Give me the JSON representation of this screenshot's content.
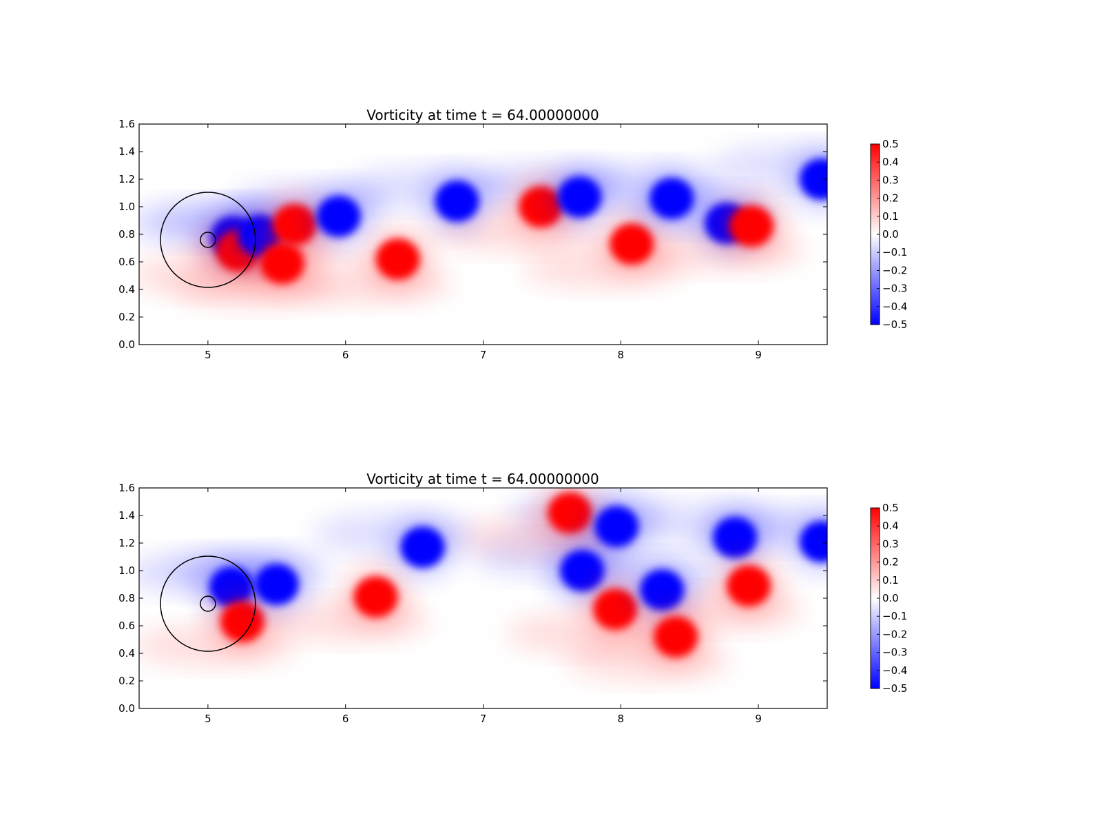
{
  "chart_data": [
    {
      "type": "heatmap",
      "title": "Vorticity at time t =    64.00000000",
      "xlabel": "",
      "ylabel": "",
      "xlim": [
        4.5,
        9.5
      ],
      "ylim": [
        0.0,
        1.6
      ],
      "xticks": [
        5,
        6,
        7,
        8,
        9
      ],
      "yticks": [
        0.0,
        0.2,
        0.4,
        0.6,
        0.8,
        1.0,
        1.2,
        1.4,
        1.6
      ],
      "xtick_labels": [
        "5",
        "6",
        "7",
        "8",
        "9"
      ],
      "ytick_labels": [
        "0.0",
        "0.2",
        "0.4",
        "0.6",
        "0.8",
        "1.0",
        "1.2",
        "1.4",
        "1.6"
      ],
      "colormap": "bwr",
      "colors": {
        "positive": "#ff0000",
        "zero": "#ffffff",
        "negative": "#0000ff"
      },
      "clim": [
        -0.5,
        0.5
      ],
      "colorbar_ticks": [
        0.5,
        0.4,
        0.3,
        0.2,
        0.1,
        0.0,
        -0.1,
        -0.2,
        -0.3,
        -0.4,
        -0.5
      ],
      "colorbar_labels": [
        "0.5",
        "0.4",
        "0.3",
        "0.2",
        "0.1",
        "0.0",
        "−0.1",
        "−0.2",
        "−0.3",
        "−0.4",
        "−0.5"
      ],
      "grid": false,
      "circles": [
        {
          "center": [
            5.0,
            0.76
          ],
          "radius": 0.345
        },
        {
          "center": [
            5.0,
            0.76
          ],
          "radius": 0.055
        }
      ],
      "vortices": [
        {
          "x": 5.18,
          "y": 0.78,
          "w": -0.5
        },
        {
          "x": 5.22,
          "y": 0.68,
          "w": 0.5
        },
        {
          "x": 5.38,
          "y": 0.79,
          "w": -0.5
        },
        {
          "x": 5.63,
          "y": 0.87,
          "w": 0.5
        },
        {
          "x": 5.54,
          "y": 0.59,
          "w": 0.5
        },
        {
          "x": 5.95,
          "y": 0.93,
          "w": -0.5
        },
        {
          "x": 6.38,
          "y": 0.62,
          "w": 0.5
        },
        {
          "x": 6.81,
          "y": 1.04,
          "w": -0.5
        },
        {
          "x": 7.42,
          "y": 1.0,
          "w": 0.5
        },
        {
          "x": 7.7,
          "y": 1.07,
          "w": -0.5
        },
        {
          "x": 8.08,
          "y": 0.73,
          "w": 0.5
        },
        {
          "x": 8.37,
          "y": 1.06,
          "w": -0.5
        },
        {
          "x": 8.77,
          "y": 0.88,
          "w": -0.5
        },
        {
          "x": 8.95,
          "y": 0.86,
          "w": 0.5
        },
        {
          "x": 9.46,
          "y": 1.2,
          "w": -0.5
        }
      ]
    },
    {
      "type": "heatmap",
      "title": "Vorticity at time t =    64.00000000",
      "xlabel": "",
      "ylabel": "",
      "xlim": [
        4.5,
        9.5
      ],
      "ylim": [
        0.0,
        1.6
      ],
      "xticks": [
        5,
        6,
        7,
        8,
        9
      ],
      "yticks": [
        0.0,
        0.2,
        0.4,
        0.6,
        0.8,
        1.0,
        1.2,
        1.4,
        1.6
      ],
      "xtick_labels": [
        "5",
        "6",
        "7",
        "8",
        "9"
      ],
      "ytick_labels": [
        "0.0",
        "0.2",
        "0.4",
        "0.6",
        "0.8",
        "1.0",
        "1.2",
        "1.4",
        "1.6"
      ],
      "colormap": "bwr",
      "colors": {
        "positive": "#ff0000",
        "zero": "#ffffff",
        "negative": "#0000ff"
      },
      "clim": [
        -0.5,
        0.5
      ],
      "colorbar_ticks": [
        0.5,
        0.4,
        0.3,
        0.2,
        0.1,
        0.0,
        -0.1,
        -0.2,
        -0.3,
        -0.4,
        -0.5
      ],
      "colorbar_labels": [
        "0.5",
        "0.4",
        "0.3",
        "0.2",
        "0.1",
        "0.0",
        "−0.1",
        "−0.2",
        "−0.3",
        "−0.4",
        "−0.5"
      ],
      "grid": false,
      "circles": [
        {
          "center": [
            5.0,
            0.76
          ],
          "radius": 0.345
        },
        {
          "center": [
            5.0,
            0.76
          ],
          "radius": 0.055
        }
      ],
      "vortices": [
        {
          "x": 5.17,
          "y": 0.88,
          "w": -0.5
        },
        {
          "x": 5.25,
          "y": 0.63,
          "w": 0.5
        },
        {
          "x": 5.5,
          "y": 0.9,
          "w": -0.5
        },
        {
          "x": 6.22,
          "y": 0.81,
          "w": 0.5
        },
        {
          "x": 6.56,
          "y": 1.17,
          "w": -0.5
        },
        {
          "x": 7.63,
          "y": 1.42,
          "w": 0.5
        },
        {
          "x": 7.97,
          "y": 1.32,
          "w": -0.5
        },
        {
          "x": 7.72,
          "y": 1.0,
          "w": -0.5
        },
        {
          "x": 7.96,
          "y": 0.72,
          "w": 0.5
        },
        {
          "x": 8.3,
          "y": 0.86,
          "w": -0.5
        },
        {
          "x": 8.4,
          "y": 0.52,
          "w": 0.5
        },
        {
          "x": 8.83,
          "y": 1.24,
          "w": -0.5
        },
        {
          "x": 8.93,
          "y": 0.89,
          "w": 0.5
        },
        {
          "x": 9.46,
          "y": 1.21,
          "w": -0.5
        }
      ]
    }
  ]
}
